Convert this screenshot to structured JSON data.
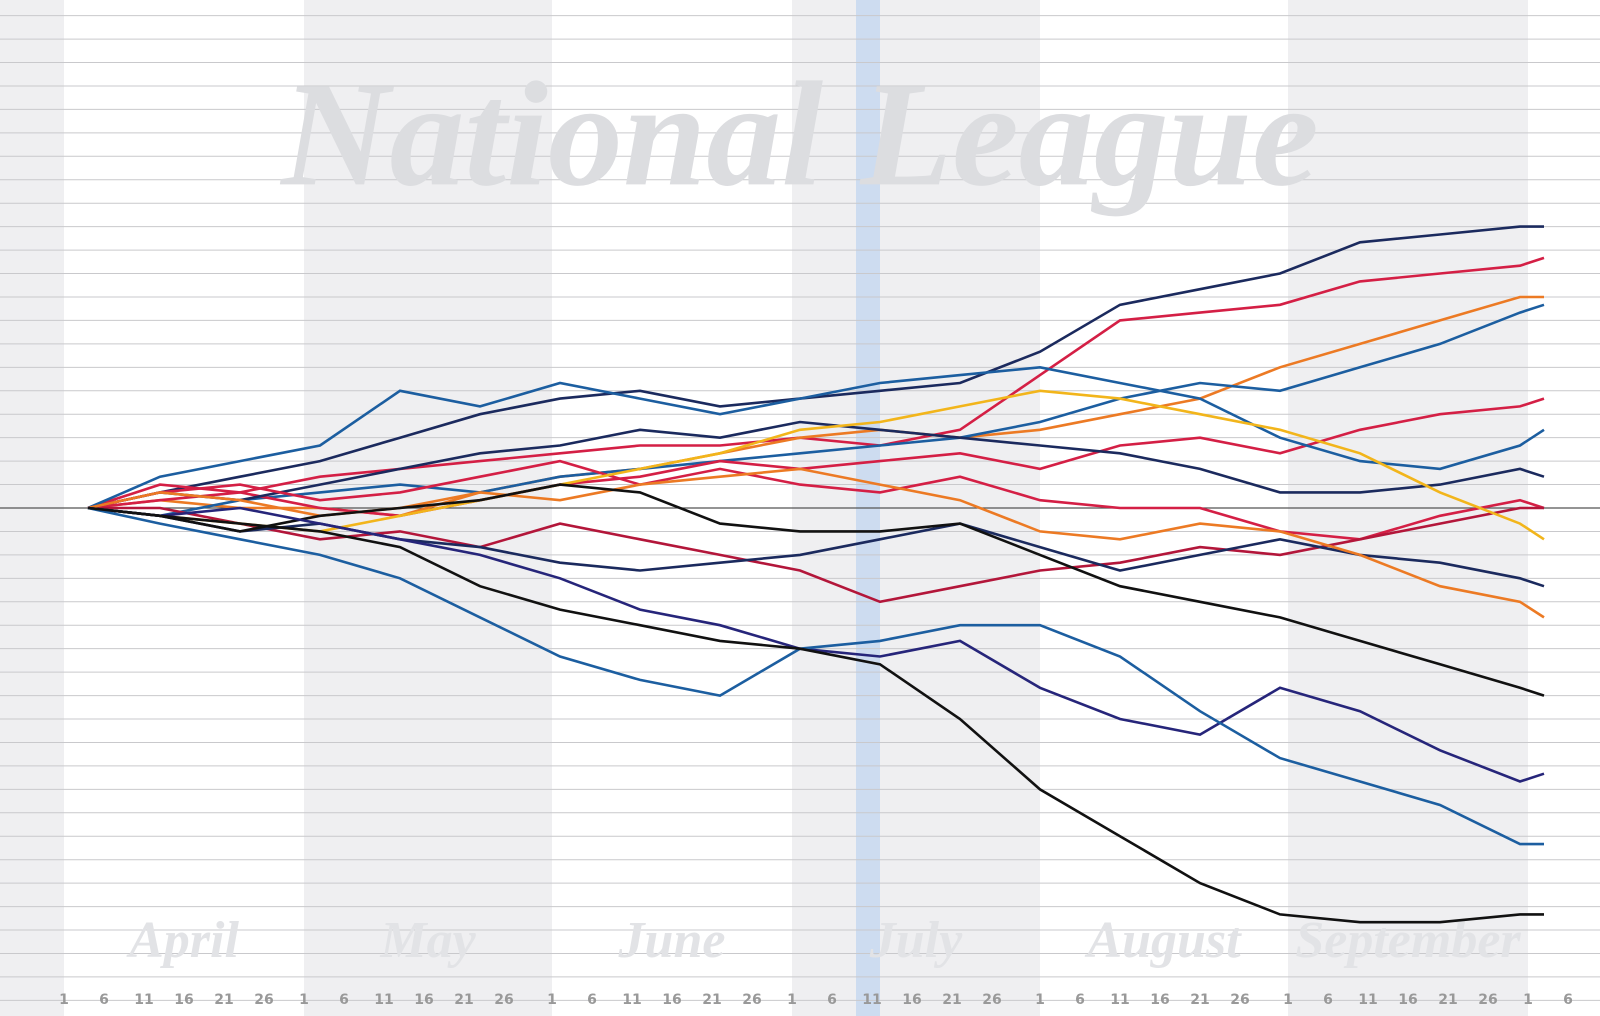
{
  "chart_data": {
    "type": "line",
    "title": "National League",
    "months": [
      {
        "label": "April",
        "from": 0,
        "to": 30
      },
      {
        "label": "May",
        "from": 30,
        "to": 61
      },
      {
        "label": "June",
        "from": 61,
        "to": 91
      },
      {
        "label": "July",
        "from": 91,
        "to": 122
      },
      {
        "label": "August",
        "from": 122,
        "to": 153
      },
      {
        "label": "September",
        "from": 153,
        "to": 183
      }
    ],
    "highlight": [
      99,
      102
    ],
    "x": [
      3,
      12,
      22,
      32,
      42,
      52,
      62,
      72,
      82,
      92,
      102,
      112,
      122,
      132,
      142,
      152,
      162,
      172,
      182,
      185
    ],
    "xlim": [
      -8,
      192
    ],
    "xticks": [
      {
        "value": 0,
        "label": "1"
      },
      {
        "value": 5,
        "label": "6"
      },
      {
        "value": 10,
        "label": "11"
      },
      {
        "value": 15,
        "label": "16"
      },
      {
        "value": 20,
        "label": "21"
      },
      {
        "value": 25,
        "label": "26"
      },
      {
        "value": 30,
        "label": "1"
      },
      {
        "value": 35,
        "label": "6"
      },
      {
        "value": 40,
        "label": "11"
      },
      {
        "value": 45,
        "label": "16"
      },
      {
        "value": 50,
        "label": "21"
      },
      {
        "value": 55,
        "label": "26"
      },
      {
        "value": 61,
        "label": "1"
      },
      {
        "value": 66,
        "label": "6"
      },
      {
        "value": 71,
        "label": "11"
      },
      {
        "value": 76,
        "label": "16"
      },
      {
        "value": 81,
        "label": "21"
      },
      {
        "value": 86,
        "label": "26"
      },
      {
        "value": 91,
        "label": "1"
      },
      {
        "value": 96,
        "label": "6"
      },
      {
        "value": 101,
        "label": "11"
      },
      {
        "value": 106,
        "label": "16"
      },
      {
        "value": 111,
        "label": "21"
      },
      {
        "value": 116,
        "label": "26"
      },
      {
        "value": 122,
        "label": "1"
      },
      {
        "value": 127,
        "label": "6"
      },
      {
        "value": 132,
        "label": "11"
      },
      {
        "value": 137,
        "label": "16"
      },
      {
        "value": 142,
        "label": "21"
      },
      {
        "value": 147,
        "label": "26"
      },
      {
        "value": 153,
        "label": "1"
      },
      {
        "value": 158,
        "label": "6"
      },
      {
        "value": 163,
        "label": "11"
      },
      {
        "value": 168,
        "label": "16"
      },
      {
        "value": 173,
        "label": "21"
      },
      {
        "value": 178,
        "label": "26"
      },
      {
        "value": 183,
        "label": "1"
      },
      {
        "value": 188,
        "label": "6"
      }
    ],
    "ylim": [
      -65,
      65
    ],
    "yticks": [
      -63,
      -60,
      -57,
      -54,
      -51,
      -48,
      -45,
      -42,
      -39,
      -36,
      -33,
      -30,
      -27,
      -24,
      -21,
      -18,
      -15,
      -12,
      -9,
      -6,
      -3,
      0,
      3,
      6,
      9,
      12,
      15,
      18,
      21,
      24,
      27,
      30,
      33,
      36,
      39,
      42,
      45,
      48,
      51,
      54,
      57,
      60,
      63
    ],
    "grid": true,
    "zero_line": true,
    "series": [
      {
        "color": "#1b2a5e",
        "values": [
          0,
          2,
          4,
          6,
          9,
          12,
          14,
          15,
          13,
          14,
          15,
          16,
          20,
          26,
          28,
          30,
          34,
          35,
          36,
          36
        ]
      },
      {
        "color": "#d41f45",
        "values": [
          0,
          3,
          2,
          4,
          5,
          6,
          7,
          8,
          8,
          9,
          8,
          10,
          17,
          24,
          25,
          26,
          29,
          30,
          31,
          32
        ]
      },
      {
        "color": "#ec7a24",
        "values": [
          0,
          1,
          0,
          0,
          -1,
          2,
          4,
          5,
          7,
          9,
          10,
          9,
          10,
          12,
          14,
          18,
          21,
          24,
          27,
          27
        ]
      },
      {
        "color": "#1c5ea0",
        "values": [
          0,
          -1,
          1,
          2,
          3,
          2,
          4,
          5,
          6,
          7,
          8,
          9,
          11,
          14,
          16,
          15,
          18,
          21,
          25,
          26
        ]
      },
      {
        "color": "#d41f45",
        "values": [
          0,
          1,
          2,
          0,
          -1,
          1,
          3,
          4,
          6,
          5,
          6,
          7,
          5,
          8,
          9,
          7,
          10,
          12,
          13,
          14
        ]
      },
      {
        "color": "#1c5ea0",
        "values": [
          0,
          4,
          6,
          8,
          15,
          13,
          16,
          14,
          12,
          14,
          16,
          17,
          18,
          16,
          14,
          9,
          6,
          5,
          8,
          10
        ]
      },
      {
        "color": "#1b2a5e",
        "values": [
          0,
          2,
          1,
          3,
          5,
          7,
          8,
          10,
          9,
          11,
          10,
          9,
          8,
          7,
          5,
          2,
          2,
          3,
          5,
          4
        ]
      },
      {
        "color": "#d41f45",
        "values": [
          0,
          2,
          3,
          1,
          2,
          4,
          6,
          3,
          5,
          3,
          2,
          4,
          1,
          0,
          0,
          -3,
          -4,
          -1,
          1,
          0
        ]
      },
      {
        "color": "#b3163a",
        "values": [
          0,
          0,
          -2,
          -4,
          -3,
          -5,
          -2,
          -4,
          -6,
          -8,
          -12,
          -10,
          -8,
          -7,
          -5,
          -6,
          -4,
          -2,
          0,
          0
        ]
      },
      {
        "color": "#f2b51b",
        "values": [
          0,
          -1,
          -2,
          -3,
          -1,
          1,
          3,
          5,
          7,
          10,
          11,
          13,
          15,
          14,
          12,
          10,
          7,
          2,
          -2,
          -4
        ]
      },
      {
        "color": "#1b2a5e",
        "values": [
          0,
          -1,
          -3,
          -2,
          -4,
          -5,
          -7,
          -8,
          -7,
          -6,
          -4,
          -2,
          -5,
          -8,
          -6,
          -4,
          -6,
          -7,
          -9,
          -10
        ]
      },
      {
        "color": "#ec7a24",
        "values": [
          0,
          2,
          1,
          -1,
          0,
          2,
          1,
          3,
          4,
          5,
          3,
          1,
          -3,
          -4,
          -2,
          -3,
          -6,
          -10,
          -12,
          -14
        ]
      },
      {
        "color": "#111111",
        "values": [
          0,
          -1,
          -3,
          -1,
          0,
          1,
          3,
          2,
          -2,
          -3,
          -3,
          -2,
          -6,
          -10,
          -12,
          -14,
          -17,
          -20,
          -23,
          -24
        ]
      },
      {
        "color": "#26257a",
        "values": [
          0,
          -1,
          0,
          -2,
          -4,
          -6,
          -9,
          -13,
          -15,
          -18,
          -19,
          -17,
          -23,
          -27,
          -29,
          -23,
          -26,
          -31,
          -35,
          -34
        ]
      },
      {
        "color": "#1c5ea0",
        "values": [
          0,
          -2,
          -4,
          -6,
          -9,
          -14,
          -19,
          -22,
          -24,
          -18,
          -17,
          -15,
          -15,
          -19,
          -26,
          -32,
          -35,
          -38,
          -43,
          -43
        ]
      },
      {
        "color": "#111111",
        "values": [
          0,
          -1,
          -2,
          -3,
          -5,
          -10,
          -13,
          -15,
          -17,
          -18,
          -20,
          -27,
          -36,
          -42,
          -48,
          -52,
          -53,
          -53,
          -52,
          -52
        ]
      }
    ]
  }
}
